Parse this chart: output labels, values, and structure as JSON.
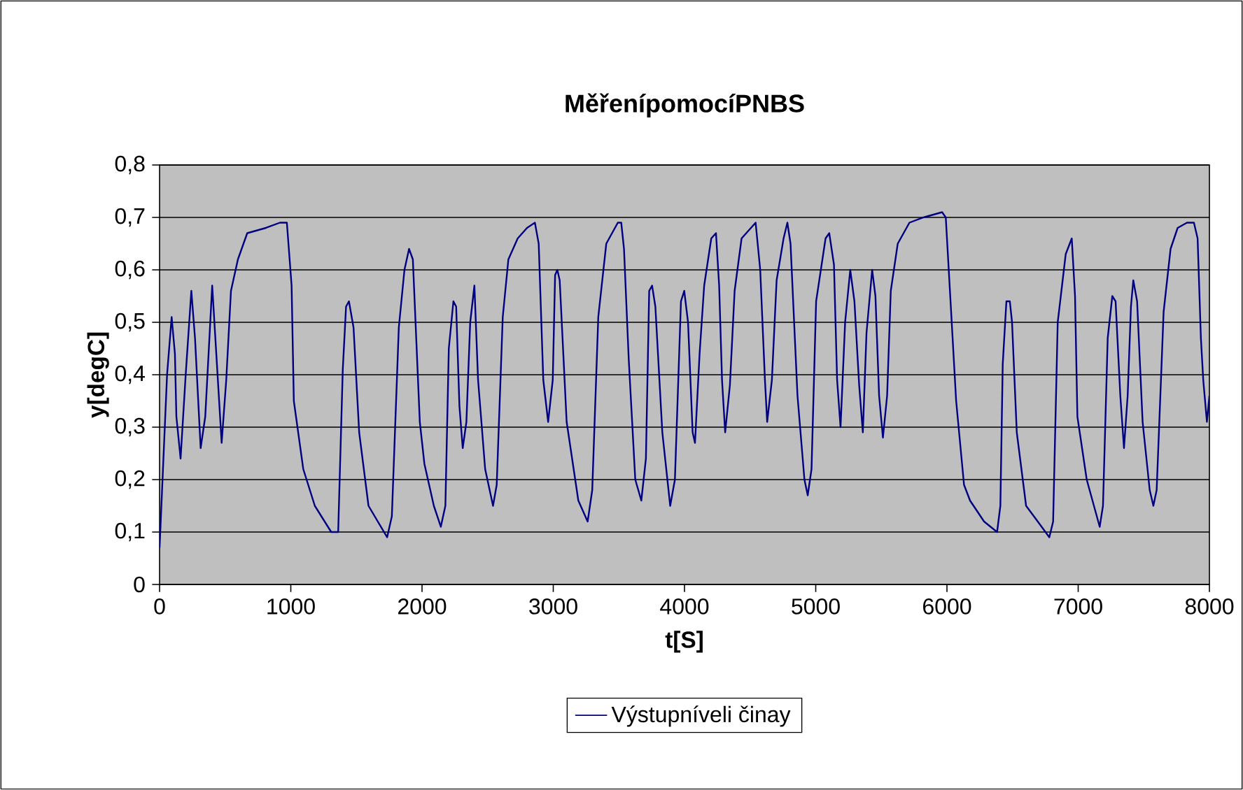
{
  "chart_data": {
    "type": "line",
    "title": "MěřenípomocíPNBS",
    "xlabel": "t[S]",
    "ylabel": "y[degC]",
    "x": [
      0,
      57,
      92,
      117,
      128,
      160,
      199,
      242,
      270,
      313,
      348,
      401,
      437,
      473,
      508,
      544,
      597,
      668,
      810,
      917,
      970,
      1006,
      1023,
      1095,
      1183,
      1308,
      1361,
      1396,
      1421,
      1443,
      1478,
      1521,
      1592,
      1734,
      1770,
      1823,
      1866,
      1901,
      1930,
      1983,
      2018,
      2090,
      2143,
      2178,
      2204,
      2239,
      2260,
      2285,
      2310,
      2338,
      2367,
      2399,
      2427,
      2481,
      2541,
      2569,
      2615,
      2658,
      2729,
      2800,
      2860,
      2889,
      2924,
      2961,
      2996,
      3014,
      3031,
      3049,
      3102,
      3191,
      3262,
      3297,
      3343,
      3404,
      3492,
      3518,
      3539,
      3575,
      3625,
      3671,
      3706,
      3731,
      3753,
      3778,
      3831,
      3891,
      3927,
      3973,
      3998,
      4027,
      4062,
      4080,
      4115,
      4150,
      4204,
      4240,
      4264,
      4286,
      4310,
      4346,
      4382,
      4435,
      4542,
      4577,
      4613,
      4630,
      4666,
      4702,
      4755,
      4784,
      4808,
      4861,
      4914,
      4939,
      4968,
      5003,
      5075,
      5103,
      5139,
      5163,
      5189,
      5224,
      5263,
      5295,
      5331,
      5359,
      5387,
      5430,
      5455,
      5483,
      5512,
      5544,
      5572,
      5625,
      5714,
      5821,
      5963,
      5991,
      6034,
      6070,
      6130,
      6176,
      6283,
      6382,
      6407,
      6425,
      6453,
      6479,
      6496,
      6532,
      6603,
      6692,
      6780,
      6809,
      6844,
      6905,
      6951,
      6976,
      6994,
      7065,
      7164,
      7189,
      7225,
      7260,
      7285,
      7321,
      7349,
      7377,
      7402,
      7420,
      7449,
      7491,
      7545,
      7573,
      7598,
      7651,
      7704,
      7758,
      7829,
      7882,
      7910,
      7935,
      7953,
      7981,
      8000
    ],
    "series": [
      {
        "name": "Výstupníveli činay",
        "color": "#000080",
        "values": [
          0.07,
          0.4,
          0.51,
          0.44,
          0.32,
          0.24,
          0.4,
          0.56,
          0.47,
          0.26,
          0.32,
          0.57,
          0.42,
          0.27,
          0.39,
          0.56,
          0.62,
          0.67,
          0.68,
          0.69,
          0.69,
          0.57,
          0.35,
          0.22,
          0.15,
          0.1,
          0.1,
          0.41,
          0.53,
          0.54,
          0.49,
          0.29,
          0.15,
          0.09,
          0.13,
          0.49,
          0.6,
          0.64,
          0.62,
          0.31,
          0.23,
          0.15,
          0.11,
          0.15,
          0.45,
          0.54,
          0.53,
          0.34,
          0.26,
          0.31,
          0.5,
          0.57,
          0.39,
          0.22,
          0.15,
          0.19,
          0.51,
          0.62,
          0.66,
          0.68,
          0.69,
          0.65,
          0.39,
          0.31,
          0.39,
          0.59,
          0.6,
          0.58,
          0.31,
          0.16,
          0.12,
          0.18,
          0.51,
          0.65,
          0.69,
          0.69,
          0.64,
          0.43,
          0.2,
          0.16,
          0.24,
          0.56,
          0.57,
          0.53,
          0.29,
          0.15,
          0.2,
          0.54,
          0.56,
          0.5,
          0.29,
          0.27,
          0.44,
          0.57,
          0.66,
          0.67,
          0.57,
          0.39,
          0.29,
          0.38,
          0.56,
          0.66,
          0.69,
          0.6,
          0.39,
          0.31,
          0.39,
          0.58,
          0.66,
          0.69,
          0.65,
          0.36,
          0.2,
          0.17,
          0.22,
          0.54,
          0.66,
          0.67,
          0.61,
          0.39,
          0.3,
          0.5,
          0.6,
          0.54,
          0.38,
          0.29,
          0.48,
          0.6,
          0.55,
          0.36,
          0.28,
          0.36,
          0.56,
          0.65,
          0.69,
          0.7,
          0.71,
          0.7,
          0.51,
          0.35,
          0.19,
          0.16,
          0.12,
          0.1,
          0.15,
          0.42,
          0.54,
          0.54,
          0.5,
          0.29,
          0.15,
          0.12,
          0.09,
          0.12,
          0.5,
          0.63,
          0.66,
          0.55,
          0.32,
          0.2,
          0.11,
          0.15,
          0.47,
          0.55,
          0.54,
          0.36,
          0.26,
          0.36,
          0.53,
          0.58,
          0.54,
          0.31,
          0.18,
          0.15,
          0.18,
          0.52,
          0.64,
          0.68,
          0.69,
          0.69,
          0.66,
          0.47,
          0.39,
          0.31,
          0.36
        ]
      }
    ],
    "xlim": [
      0,
      8000
    ],
    "ylim": [
      0,
      0.8
    ],
    "xticks": [
      0,
      1000,
      2000,
      3000,
      4000,
      5000,
      6000,
      7000,
      8000
    ],
    "yticks": [
      0,
      {
        "value": 0.1,
        "label": "0,1"
      },
      {
        "value": 0.2,
        "label": "0,2"
      },
      {
        "value": 0.3,
        "label": "0,3"
      },
      {
        "value": 0.4,
        "label": "0,4"
      },
      {
        "value": 0.5,
        "label": "0,5"
      },
      {
        "value": 0.6,
        "label": "0,6"
      },
      {
        "value": 0.7,
        "label": "0,7"
      },
      {
        "value": 0.8,
        "label": "0,8"
      }
    ],
    "grid": "y",
    "legend": "bottom"
  }
}
